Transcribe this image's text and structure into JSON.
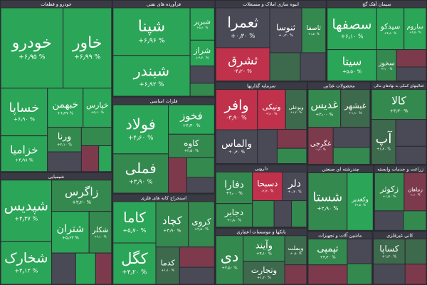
{
  "chart_data": {
    "type": "treemap",
    "background": "#2b2b33",
    "sectors": [
      {
        "name": "خودرو و قطعات",
        "value": 33,
        "tiles": [
          {
            "name": "خودرو",
            "label": "+۶٫۹۵ %",
            "value": 9,
            "change": 6.95,
            "color": "#2ba557"
          },
          {
            "name": "خاور",
            "label": "+۶٫۹۹ %",
            "value": 7,
            "change": 6.99,
            "color": "#2ba557"
          },
          {
            "name": "خساپا",
            "label": "+۶٫۹۰ %",
            "value": 4,
            "change": 6.9,
            "color": "#2ba557"
          },
          {
            "name": "خزامیا",
            "label": "+۴٫۹۸ %",
            "value": 3,
            "change": 4.98,
            "color": "#2ba557"
          },
          {
            "name": "خبهمن",
            "label": "+۶٫۴۷ %",
            "value": 2.5,
            "change": 6.47,
            "color": "#2ba557"
          },
          {
            "name": "خپارس",
            "label": "+۵٫۱۰ %",
            "value": 2,
            "change": 5.1,
            "color": "#2ba557"
          },
          {
            "name": "ورنا",
            "label": "+۲٫۱۰ %",
            "value": 1.5,
            "change": 2.1,
            "color": "#34894f"
          },
          {
            "value": 1.2,
            "change": 0.4,
            "color": "#4a4a56"
          },
          {
            "value": 1,
            "change": 3.2,
            "color": "#34894f"
          },
          {
            "value": 0.8,
            "change": -1.2,
            "color": "#7d3a4d"
          },
          {
            "value": 0.6,
            "change": 5,
            "color": "#2ba557"
          }
        ]
      },
      {
        "name": "شیمیایی",
        "value": 21.6,
        "tiles": [
          {
            "name": "شپدیس",
            "label": "+۴٫۳۷ %",
            "value": 5,
            "change": 4.37,
            "color": "#2ba557"
          },
          {
            "name": "شخارک",
            "label": "+۴٫۱۲ %",
            "value": 3.5,
            "change": 4.12,
            "color": "#2ba557"
          },
          {
            "name": "زاگرس",
            "label": "+۳٫۲۰ %",
            "value": 3,
            "change": 3.2,
            "color": "#34894f"
          },
          {
            "name": "شتران",
            "label": "+۵٫۶۳ %",
            "value": 2.5,
            "change": 5.63,
            "color": "#2ba557"
          },
          {
            "name": "شکلر",
            "label": "+۲٫۱۰ %",
            "value": 1.5,
            "change": 2.1,
            "color": "#34894f"
          },
          {
            "value": 1.2,
            "change": 0.3,
            "color": "#4a4a56"
          },
          {
            "value": 1,
            "change": 4,
            "color": "#2ba557"
          },
          {
            "value": 0.8,
            "change": -2,
            "color": "#7d3a4d"
          }
        ]
      },
      {
        "name": "فرآورده های نفتی",
        "value": 17,
        "tiles": [
          {
            "name": "شپنا",
            "label": "+۶٫۹۶ %",
            "value": 7,
            "change": 6.96,
            "color": "#2ba557"
          },
          {
            "name": "شبندر",
            "label": "+۶٫۹۲ %",
            "value": 6,
            "change": 6.92,
            "color": "#2ba557"
          },
          {
            "name": "شبریز",
            "label": "+۵٫۸۰ %",
            "value": 1.5,
            "change": 5.8,
            "color": "#2ba557"
          },
          {
            "name": "شراز",
            "label": "+۴٫۲۰ %",
            "value": 1.2,
            "change": 4.2,
            "color": "#2ba557"
          },
          {
            "value": 0.8,
            "change": 0.2,
            "color": "#4a4a56"
          },
          {
            "value": 0.6,
            "change": 3,
            "color": "#34894f"
          }
        ]
      },
      {
        "name": "فلزات اساسی",
        "value": 17,
        "tiles": [
          {
            "name": "فولاد",
            "label": "+۴٫۶۰ %",
            "value": 5,
            "change": 4.6,
            "color": "#2ba557"
          },
          {
            "name": "فملی",
            "label": "+۳٫۹۰ %",
            "value": 4,
            "change": 3.9,
            "color": "#34894f"
          },
          {
            "name": "فخوز",
            "label": "+۴٫۳۰ %",
            "value": 2.5,
            "change": 4.3,
            "color": "#2ba557"
          },
          {
            "name": "کاوه",
            "label": "+۲٫۵۰ %",
            "value": 2,
            "change": 2.5,
            "color": "#34894f"
          },
          {
            "value": 1.2,
            "change": -0.8,
            "color": "#7d3a4d"
          },
          {
            "value": 1,
            "change": 2,
            "color": "#34894f"
          },
          {
            "value": 0.8,
            "change": 0.1,
            "color": "#4a4a56"
          }
        ]
      },
      {
        "name": "استخراج کانه های فلزی",
        "value": 16,
        "tiles": [
          {
            "name": "کاما",
            "label": "+۵٫۷۰ %",
            "value": 3,
            "change": 5.7,
            "color": "#2ba557"
          },
          {
            "name": "کگل",
            "label": "+۴٫۲۰ %",
            "value": 3,
            "change": 4.2,
            "color": "#2ba557"
          },
          {
            "name": "کچاد",
            "label": "+۳٫۹۰ %",
            "value": 2.5,
            "change": 3.9,
            "color": "#34894f"
          },
          {
            "name": "کروی",
            "label": "+۲٫۸۰ %",
            "value": 2,
            "change": 2.8,
            "color": "#34894f"
          },
          {
            "name": "کدما",
            "label": "+۱٫۱۰ %",
            "value": 1.5,
            "change": 1.1,
            "color": "#3d6a4c"
          },
          {
            "value": 1.2,
            "change": -1,
            "color": "#7d3a4d"
          },
          {
            "value": 1,
            "change": 0.3,
            "color": "#4a4a56"
          }
        ]
      },
      {
        "name": "انبوه سازی املاک و مستغلات",
        "value": 15.5,
        "tiles": [
          {
            "name": "ثعمرا",
            "label": "+۰٫۳۰ %",
            "value": 3,
            "change": 0.3,
            "color": "#4a4a56"
          },
          {
            "name": "ثشرق",
            "label": "-۴٫۲۰ %",
            "value": 2.5,
            "change": -4.2,
            "color": "#c0314b"
          },
          {
            "name": "ثنوسا",
            "label": "+۰٫۲۰ %",
            "value": 2,
            "change": 0.2,
            "color": "#4a4a56"
          },
          {
            "name": "ثاصفا",
            "label": "+۱٫۵۰ %",
            "value": 1.5,
            "change": 1.5,
            "color": "#34894f"
          },
          {
            "value": 1.2,
            "change": 0.5,
            "color": "#3d6a4c"
          },
          {
            "value": 1,
            "change": -0.3,
            "color": "#4a4a56"
          }
        ]
      },
      {
        "name": "سیمان آهک گچ",
        "value": 14,
        "tiles": [
          {
            "name": "سصفها",
            "label": "+۶٫۱۰ %",
            "value": 4,
            "change": 6.1,
            "color": "#2ba557"
          },
          {
            "name": "سیتا",
            "label": "+۵٫۵۰ %",
            "value": 3,
            "change": 5.5,
            "color": "#2ba557"
          },
          {
            "name": "سیدکو",
            "label": "+۴٫۸۰ %",
            "value": 2.2,
            "change": 4.8,
            "color": "#2ba557"
          },
          {
            "name": "ساروم",
            "label": "+۴٫۵۰ %",
            "value": 1.8,
            "change": 4.5,
            "color": "#2ba557"
          },
          {
            "name": "سخوز",
            "label": "+۳٫۰۰ %",
            "value": 1.2,
            "change": 3,
            "color": "#34894f"
          },
          {
            "value": 1,
            "change": -1.5,
            "color": "#7d3a4d"
          },
          {
            "value": 0.8,
            "change": 0.2,
            "color": "#4a4a56"
          }
        ]
      },
      {
        "name": "سرمایه گذاریها",
        "value": 13,
        "tiles": [
          {
            "name": "وافر",
            "label": "-۳٫۹۰ %",
            "value": 3,
            "change": -3.9,
            "color": "#c0314b"
          },
          {
            "name": "والماس",
            "label": "+۰٫۴۰ %",
            "value": 2.5,
            "change": 0.4,
            "color": "#4a4a56"
          },
          {
            "name": "ونیکی",
            "label": "-۲٫۱۰ %",
            "value": 2,
            "change": -2.1,
            "color": "#c0314b"
          },
          {
            "name": "وبوعلی",
            "label": "+۱٫۲۰ %",
            "value": 1.5,
            "change": 1.2,
            "color": "#3d6a4c"
          },
          {
            "value": 1.2,
            "change": 0.1,
            "color": "#4a4a56"
          },
          {
            "value": 1,
            "change": -0.6,
            "color": "#7d3a4d"
          },
          {
            "value": 0.8,
            "change": 2,
            "color": "#34894f"
          }
        ]
      },
      {
        "name": "دارویی",
        "value": 10,
        "tiles": [
          {
            "name": "دفارا",
            "label": "+۲٫۰۰ %",
            "value": 2,
            "change": 2,
            "color": "#34894f"
          },
          {
            "name": "دجابر",
            "label": "+۱٫۸۰ %",
            "value": 1.5,
            "change": 1.8,
            "color": "#34894f"
          },
          {
            "name": "دسبحا",
            "label": "-۲٫۳۰ %",
            "value": 1.5,
            "change": -2.3,
            "color": "#c0314b"
          },
          {
            "name": "دلر",
            "label": "+۰٫۴۰ %",
            "value": 1.2,
            "change": 0.4,
            "color": "#4a4a56"
          },
          {
            "value": 1,
            "change": 3,
            "color": "#34894f"
          },
          {
            "value": 0.8,
            "change": -0.2,
            "color": "#4a4a56"
          },
          {
            "value": 0.7,
            "change": 1.5,
            "color": "#34894f"
          }
        ]
      },
      {
        "name": "بانکها و موسسات اعتباری",
        "value": 9,
        "tiles": [
          {
            "name": "دی",
            "label": "+۲٫۵۰ %",
            "value": 2.5,
            "change": 2.5,
            "color": "#34894f"
          },
          {
            "name": "وآیند",
            "label": "+۳٫۱۰ %",
            "value": 2,
            "change": 3.1,
            "color": "#34894f"
          },
          {
            "name": "وتجارت",
            "label": "+۱٫۲۰ %",
            "value": 1.8,
            "change": 1.2,
            "color": "#3d6a4c"
          },
          {
            "name": "وبملت",
            "label": "+۰٫۵۰ %",
            "value": 1.2,
            "change": 0.5,
            "color": "#3d6a4c"
          },
          {
            "value": 0.8,
            "change": -0.5,
            "color": "#7d3a4d"
          }
        ]
      },
      {
        "name": "محصولات غذایی",
        "value": 9,
        "tiles": [
          {
            "name": "غدیس",
            "label": "+۲٫۰۰ %",
            "value": 2,
            "change": 2,
            "color": "#34894f"
          },
          {
            "name": "غبشهر",
            "label": "+۱٫۱۰ %",
            "value": 1.8,
            "change": 1.1,
            "color": "#3d6a4c"
          },
          {
            "name": "غگرجی",
            "label": "-۱٫۶۰ %",
            "value": 1.5,
            "change": -1.6,
            "color": "#7d3a4d"
          },
          {
            "value": 1.2,
            "change": 0.2,
            "color": "#4a4a56"
          },
          {
            "value": 1,
            "change": 3,
            "color": "#34894f"
          }
        ]
      },
      {
        "name": "فعالیتهای کمکی به نهادهای مالی",
        "value": 8,
        "tiles": [
          {
            "name": "کالا",
            "label": "+۳٫۳۰ %",
            "value": 3,
            "change": 3.3,
            "color": "#34894f"
          },
          {
            "name": "آپ",
            "label": "+۱٫۲۰ %",
            "value": 2,
            "change": 1.2,
            "color": "#3d6a4c"
          },
          {
            "value": 1.5,
            "change": 0.3,
            "color": "#4a4a56"
          },
          {
            "value": 1,
            "change": -0.4,
            "color": "#4a4a56"
          }
        ]
      },
      {
        "name": "چندرشته ای صنعتی",
        "value": 7.5,
        "tiles": [
          {
            "name": "شستا",
            "label": "+۲٫۹۰ %",
            "value": 4.5,
            "change": 2.9,
            "color": "#34894f"
          },
          {
            "name": "وکغدیر",
            "label": "+۴٫۵۰ %",
            "value": 3,
            "change": 4.5,
            "color": "#2ba557"
          }
        ]
      },
      {
        "name": "زراعت و خدمات وابسته",
        "value": 6,
        "tiles": [
          {
            "name": "زکوثر",
            "label": "+۱٫۵۰ %",
            "value": 2,
            "change": 1.5,
            "color": "#34894f"
          },
          {
            "name": "زماهان",
            "label": "-۱٫۱۰ %",
            "value": 1.5,
            "change": -1.1,
            "color": "#7d3a4d"
          },
          {
            "value": 1,
            "change": 0.2,
            "color": "#4a4a56"
          },
          {
            "value": 0.8,
            "change": 2,
            "color": "#34894f"
          }
        ]
      },
      {
        "name": "ماشین آلات و تجهیزات",
        "value": 6,
        "tiles": [
          {
            "name": "تپمپی",
            "label": "+۳٫۴۰ %",
            "value": 2,
            "change": 3.4,
            "color": "#34894f"
          },
          {
            "value": 1.5,
            "change": -1,
            "color": "#7d3a4d"
          },
          {
            "value": 1.2,
            "change": 0.3,
            "color": "#4a4a56"
          },
          {
            "value": 1,
            "change": 2.5,
            "color": "#34894f"
          }
        ]
      },
      {
        "name": "کانی غیرفلزی",
        "value": 5,
        "tiles": [
          {
            "name": "کساپا",
            "label": "+۱٫۲۰ %",
            "value": 1.5,
            "change": 1.2,
            "color": "#3d6a4c"
          },
          {
            "value": 1.2,
            "change": -0.3,
            "color": "#4a4a56"
          },
          {
            "value": 1,
            "change": 0.9,
            "color": "#3d6a4c"
          },
          {
            "value": 0.8,
            "change": -1.8,
            "color": "#7d3a4d"
          }
        ]
      }
    ]
  }
}
